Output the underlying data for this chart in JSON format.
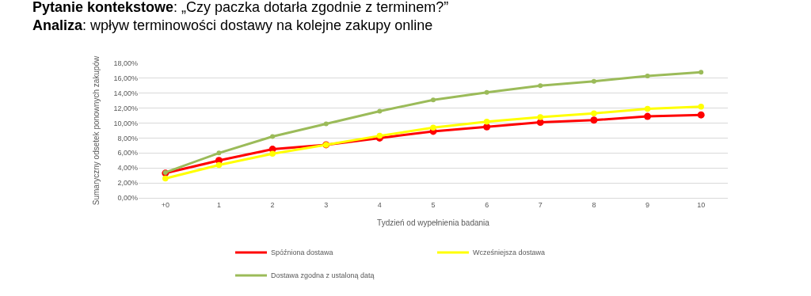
{
  "chart_data": {
    "type": "line",
    "title": "Pytanie kontekstowe: „Czy paczka dotarła zgodnie z terminem?”",
    "subtitle": "Analiza: wpływ terminowości dostawy na kolejne zakupy online",
    "xlabel": "Tydzień od wypełnienia badania",
    "ylabel": "Sumaryczny odsetek ponownych zakupów",
    "categories": [
      "+0",
      "1",
      "2",
      "3",
      "4",
      "5",
      "6",
      "7",
      "8",
      "9",
      "10"
    ],
    "series": [
      {
        "name": "Spóźniona dostawa",
        "color": "#ff0000",
        "values": [
          3.3,
          5.0,
          6.5,
          7.1,
          8.0,
          8.9,
          9.5,
          10.1,
          10.4,
          10.9,
          11.1
        ]
      },
      {
        "name": "Wcześniejsza dostawa",
        "color": "#ffff00",
        "values": [
          2.6,
          4.4,
          5.9,
          7.1,
          8.3,
          9.4,
          10.2,
          10.8,
          11.3,
          11.9,
          12.2
        ]
      },
      {
        "name": "Dostawa zgodna z ustaloną datą",
        "color": "#9bbb59",
        "values": [
          3.4,
          6.0,
          8.2,
          9.9,
          11.6,
          13.1,
          14.1,
          15.0,
          15.6,
          16.3,
          16.8
        ]
      }
    ],
    "ylim": [
      0,
      18
    ],
    "yticks": [
      {
        "value": 0,
        "label": "0,00%"
      },
      {
        "value": 2,
        "label": "2,00%"
      },
      {
        "value": 4,
        "label": "4,00%"
      },
      {
        "value": 6,
        "label": "6,00%"
      },
      {
        "value": 8,
        "label": "8,00%"
      },
      {
        "value": 10,
        "label": "10,00%"
      },
      {
        "value": 12,
        "label": "12,00%"
      },
      {
        "value": 14,
        "label": "14,00%"
      },
      {
        "value": 16,
        "label": "16,00%"
      },
      {
        "value": 18,
        "label": "18,00%"
      }
    ],
    "grid": "y",
    "legend": "bottom",
    "marker": "circle",
    "line_style": "solid"
  }
}
